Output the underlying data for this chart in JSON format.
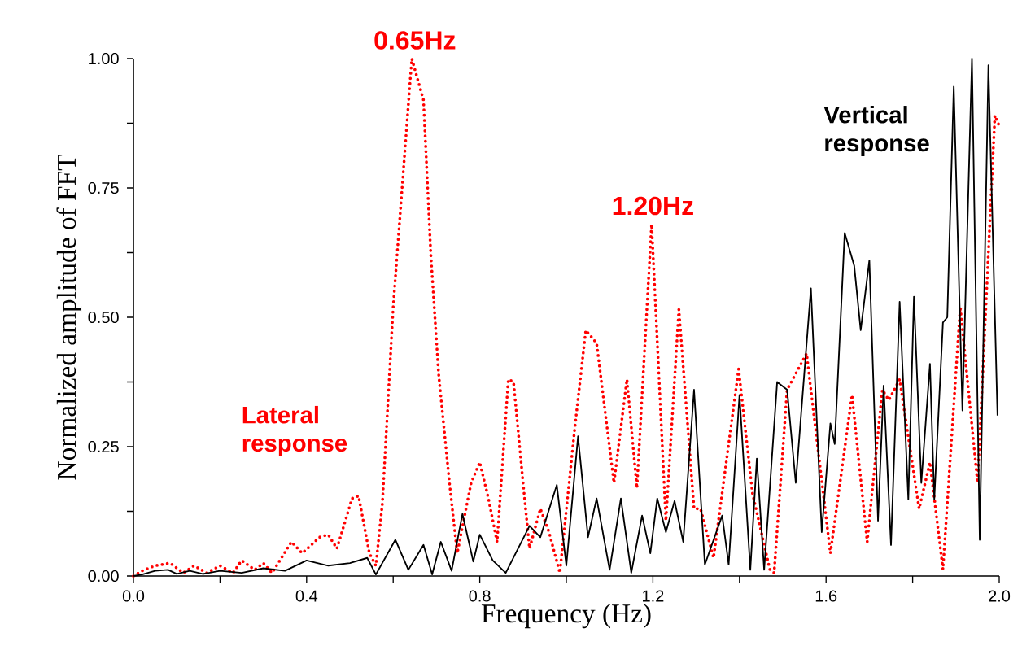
{
  "chart_data": {
    "type": "line",
    "xlabel": "Frequency (Hz)",
    "ylabel": "Normalized amplitude of FFT",
    "xlim": [
      0,
      2
    ],
    "ylim": [
      0,
      1
    ],
    "xticks": [
      {
        "value": 0,
        "label": "0.0"
      },
      {
        "value": 0.2,
        "label": null
      },
      0.4,
      {
        "value": 0.6,
        "label": null
      },
      0.8,
      {
        "value": 1.0,
        "label": null
      },
      1.2,
      {
        "value": 1.4,
        "label": null
      },
      1.6,
      {
        "value": 1.8,
        "label": null
      },
      {
        "value": 2,
        "label": "2.0"
      }
    ],
    "yticks": [
      {
        "value": 0,
        "label": "0.00"
      },
      {
        "value": 0.125,
        "label": null
      },
      {
        "value": 0.25,
        "label": "0.25"
      },
      {
        "value": 0.375,
        "label": null
      },
      {
        "value": 0.5,
        "label": "0.50"
      },
      {
        "value": 0.625,
        "label": null
      },
      {
        "value": 0.75,
        "label": "0.75"
      },
      {
        "value": 0.875,
        "label": null
      },
      {
        "value": 1,
        "label": "1.00"
      }
    ],
    "grid": false,
    "legend": false,
    "marker": "none",
    "annotations": [
      {
        "text": "0.65Hz",
        "x": 0.65,
        "y": 1.0
      },
      {
        "text": "1.20Hz",
        "x": 1.2,
        "y": 0.68
      }
    ],
    "series": [
      {
        "name": "Lateral response",
        "color": "#ff0000",
        "line_style": "dotted",
        "x": [
          0,
          0.02,
          0.05,
          0.085,
          0.115,
          0.14,
          0.17,
          0.2,
          0.23,
          0.25,
          0.28,
          0.3,
          0.32,
          0.365,
          0.39,
          0.43,
          0.45,
          0.47,
          0.505,
          0.52,
          0.545,
          0.56,
          0.575,
          0.6,
          0.643,
          0.67,
          0.687,
          0.705,
          0.73,
          0.748,
          0.78,
          0.8,
          0.82,
          0.84,
          0.866,
          0.878,
          0.9,
          0.915,
          0.94,
          0.96,
          0.985,
          1.02,
          1.045,
          1.07,
          1.11,
          1.14,
          1.163,
          1.197,
          1.23,
          1.26,
          1.295,
          1.31,
          1.34,
          1.398,
          1.43,
          1.47,
          1.48,
          1.51,
          1.555,
          1.61,
          1.66,
          1.695,
          1.73,
          1.745,
          1.77,
          1.815,
          1.84,
          1.87,
          1.91,
          1.95,
          1.99,
          2.0
        ],
        "values": [
          0,
          0.01,
          0.02,
          0.025,
          0.006,
          0.02,
          0.006,
          0.02,
          0.006,
          0.03,
          0.012,
          0.025,
          0.006,
          0.066,
          0.044,
          0.075,
          0.08,
          0.053,
          0.15,
          0.155,
          0.044,
          0.02,
          0.14,
          0.52,
          1.0,
          0.92,
          0.62,
          0.39,
          0.18,
          0.044,
          0.18,
          0.22,
          0.15,
          0.066,
          0.38,
          0.375,
          0.18,
          0.053,
          0.13,
          0.085,
          0.006,
          0.29,
          0.475,
          0.45,
          0.18,
          0.38,
          0.17,
          0.68,
          0.107,
          0.515,
          0.13,
          0.13,
          0.035,
          0.4,
          0.16,
          0.013,
          0.006,
          0.36,
          0.43,
          0.044,
          0.35,
          0.066,
          0.36,
          0.34,
          0.38,
          0.13,
          0.22,
          0.013,
          0.52,
          0.18,
          0.89,
          0.87
        ]
      },
      {
        "name": "Vertical response",
        "color": "#000000",
        "line_style": "solid",
        "x": [
          0,
          0.02,
          0.05,
          0.08,
          0.1,
          0.13,
          0.16,
          0.2,
          0.25,
          0.3,
          0.35,
          0.4,
          0.45,
          0.5,
          0.54,
          0.56,
          0.605,
          0.635,
          0.67,
          0.69,
          0.71,
          0.735,
          0.76,
          0.785,
          0.8,
          0.83,
          0.86,
          0.915,
          0.94,
          0.978,
          1.0,
          1.027,
          1.05,
          1.07,
          1.1,
          1.126,
          1.15,
          1.175,
          1.194,
          1.21,
          1.23,
          1.25,
          1.27,
          1.295,
          1.32,
          1.36,
          1.375,
          1.4,
          1.425,
          1.44,
          1.457,
          1.487,
          1.51,
          1.53,
          1.565,
          1.59,
          1.61,
          1.62,
          1.643,
          1.665,
          1.68,
          1.7,
          1.72,
          1.733,
          1.75,
          1.77,
          1.79,
          1.803,
          1.82,
          1.84,
          1.85,
          1.87,
          1.88,
          1.895,
          1.915,
          1.937,
          1.955,
          1.975,
          1.996
        ],
        "values": [
          0,
          0.003,
          0.01,
          0.012,
          0.004,
          0.01,
          0.004,
          0.01,
          0.006,
          0.015,
          0.01,
          0.03,
          0.02,
          0.025,
          0.035,
          0.003,
          0.07,
          0.012,
          0.06,
          0.003,
          0.066,
          0.01,
          0.12,
          0.028,
          0.08,
          0.03,
          0.006,
          0.097,
          0.075,
          0.176,
          0.02,
          0.27,
          0.075,
          0.15,
          0.012,
          0.15,
          0.006,
          0.117,
          0.044,
          0.15,
          0.085,
          0.145,
          0.066,
          0.36,
          0.022,
          0.117,
          0.022,
          0.35,
          0.012,
          0.227,
          0.012,
          0.375,
          0.36,
          0.18,
          0.556,
          0.085,
          0.295,
          0.255,
          0.663,
          0.6,
          0.475,
          0.61,
          0.107,
          0.368,
          0.06,
          0.53,
          0.148,
          0.54,
          0.18,
          0.41,
          0.148,
          0.49,
          0.5,
          0.946,
          0.32,
          1.0,
          0.07,
          0.987,
          0.31
        ]
      }
    ]
  }
}
